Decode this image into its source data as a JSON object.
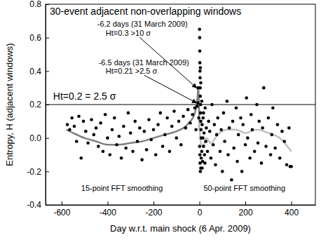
{
  "chart_data": {
    "type": "scatter",
    "title": "30-event adjacent non-overlapping windows",
    "x_label": "Day w.r.t. main shock (6 Apr. 2009)",
    "y_label": "Entropy, H (adjacent windows)",
    "xlim": [
      -670,
      505
    ],
    "ylim": [
      -0.4,
      0.8
    ],
    "xticks": [
      -600,
      -400,
      -200,
      0,
      200,
      400
    ],
    "yticks": [
      -0.4,
      -0.2,
      {
        "value": 0,
        "label": "0.0"
      },
      0.2,
      0.4,
      0.6,
      0.8
    ],
    "grid": false,
    "series": [
      {
        "type": "scatter",
        "color": "#000000",
        "marker": "circle",
        "x": [
          -575,
          -565,
          -555,
          -545,
          -535,
          -525,
          -515,
          -505,
          -495,
          -485,
          -470,
          -460,
          -450,
          -440,
          -430,
          -420,
          -410,
          -400,
          -390,
          -380,
          -370,
          -360,
          -350,
          -340,
          -330,
          -320,
          -310,
          -300,
          -290,
          -280,
          -270,
          -260,
          -250,
          -240,
          -230,
          -220,
          -210,
          -200,
          -190,
          -180,
          -170,
          -160,
          -150,
          -140,
          -130,
          -120,
          -110,
          -100,
          -90,
          -80,
          -70,
          -60,
          -50,
          -40,
          -30,
          -20,
          -15,
          -10,
          -6.5,
          -6.2,
          -3,
          0.5,
          1,
          1.5,
          2,
          2.5,
          3,
          3.5,
          4,
          5,
          5,
          6,
          7,
          8,
          1,
          2,
          3,
          4,
          6,
          8,
          10,
          12,
          14,
          16,
          18,
          20,
          22,
          25,
          28,
          30,
          10,
          6,
          4,
          12,
          15,
          18,
          24,
          35,
          40,
          45,
          50,
          55,
          60,
          65,
          70,
          75,
          80,
          90,
          95,
          100,
          105,
          110,
          120,
          125,
          130,
          140,
          145,
          150,
          160,
          165,
          170,
          180,
          185,
          190,
          200,
          205,
          210,
          220,
          225,
          230,
          240,
          250,
          255,
          260,
          270,
          275,
          280,
          290,
          300,
          310,
          315,
          320,
          330,
          340,
          350,
          360,
          370,
          380,
          390,
          395,
          400
        ],
        "values": [
          0.08,
          0.05,
          0.12,
          0.07,
          -0.02,
          0.13,
          -0.12,
          0.1,
          0.04,
          -0.03,
          0.11,
          0.02,
          0.06,
          -0.05,
          0.09,
          -0.08,
          0.14,
          0.0,
          -0.1,
          0.05,
          0.12,
          -0.04,
          0.01,
          -0.12,
          0.07,
          -0.06,
          0.15,
          0.03,
          -0.08,
          0.1,
          -0.02,
          0.06,
          -0.13,
          0.04,
          -0.07,
          0.11,
          -0.01,
          0.05,
          -0.1,
          0.08,
          0.15,
          -0.05,
          0.02,
          0.12,
          -0.08,
          0.07,
          0.16,
          0.0,
          0.1,
          -0.04,
          0.13,
          0.06,
          0.17,
          0.09,
          0.14,
          0.18,
          0.05,
          0.19,
          0.21,
          0.3,
          0.12,
          0.65,
          0.6,
          0.52,
          0.45,
          0.4,
          0.36,
          0.3,
          0.25,
          0.2,
          0.15,
          0.1,
          0.05,
          0.0,
          -0.05,
          -0.1,
          -0.15,
          -0.2,
          -0.18,
          -0.12,
          -0.08,
          0.08,
          -0.14,
          0.12,
          -0.05,
          0.03,
          -0.1,
          0.18,
          -0.02,
          0.06,
          0.22,
          0.33,
          0.42,
          -0.18,
          0.0,
          0.15,
          -0.15,
          -0.08,
          0.1,
          0.04,
          -0.12,
          0.2,
          -0.04,
          0.08,
          -0.16,
          0.02,
          0.12,
          -0.08,
          0.05,
          -0.2,
          0.15,
          -0.02,
          0.22,
          -0.1,
          0.06,
          -0.25,
          0.1,
          -0.06,
          0.18,
          -0.14,
          0.02,
          0.12,
          -0.2,
          0.08,
          -0.04,
          0.24,
          0.0,
          -0.12,
          0.14,
          0.05,
          -0.08,
          0.2,
          -0.03,
          0.1,
          -0.15,
          0.06,
          0.3,
          -0.05,
          0.12,
          -0.1,
          0.02,
          0.18,
          -0.06,
          0.08,
          -0.12,
          0.04,
          -0.02,
          -0.16,
          0.06,
          -0.17,
          -0.17
        ]
      },
      {
        "type": "line",
        "color": "#808080",
        "line_style": "solid",
        "x": [
          -580,
          -550,
          -500,
          -450,
          -400,
          -350,
          -300,
          -250,
          -200,
          -150,
          -100,
          -60,
          -40,
          -25,
          -15,
          -8,
          -5,
          -2,
          0
        ],
        "values": [
          0.05,
          0.03,
          0.0,
          -0.02,
          -0.04,
          -0.04,
          -0.03,
          -0.02,
          0.0,
          0.02,
          0.04,
          0.07,
          0.1,
          0.13,
          0.18,
          0.25,
          0.3,
          0.2,
          0.05
        ]
      },
      {
        "type": "line",
        "color": "#c0c0c0",
        "line_style": "solid",
        "x": [
          0,
          5,
          15,
          30,
          50,
          80,
          120,
          160,
          200,
          250,
          300,
          350,
          400
        ],
        "values": [
          0.1,
          -0.02,
          -0.05,
          0.0,
          -0.03,
          0.02,
          0.05,
          0.05,
          0.03,
          0.05,
          0.03,
          0.0,
          -0.08
        ]
      }
    ],
    "annotations": [
      {
        "text": "-6.2 days (31 March 2009)",
        "x": -445,
        "y": 0.665
      },
      {
        "text": "Ht=0.3 >10 σ",
        "x": -408,
        "y": 0.61,
        "point": [
          -6.2,
          0.3
        ]
      },
      {
        "text": "-6.5 days (31 March 2009)",
        "x": -439,
        "y": 0.437
      },
      {
        "text": "Ht=0.21 >2.5 σ",
        "x": -408,
        "y": 0.383,
        "point": [
          -6.5,
          0.21
        ]
      },
      {
        "text": "Ht=0.2 = 2.5 σ",
        "x": -637,
        "y": 0.23,
        "hline": 0.2
      },
      {
        "text": "15-point FFT smoothing",
        "x": -515,
        "y": -0.315
      },
      {
        "text": "50-point FFT smoothing",
        "x": 18,
        "y": -0.315
      }
    ]
  }
}
